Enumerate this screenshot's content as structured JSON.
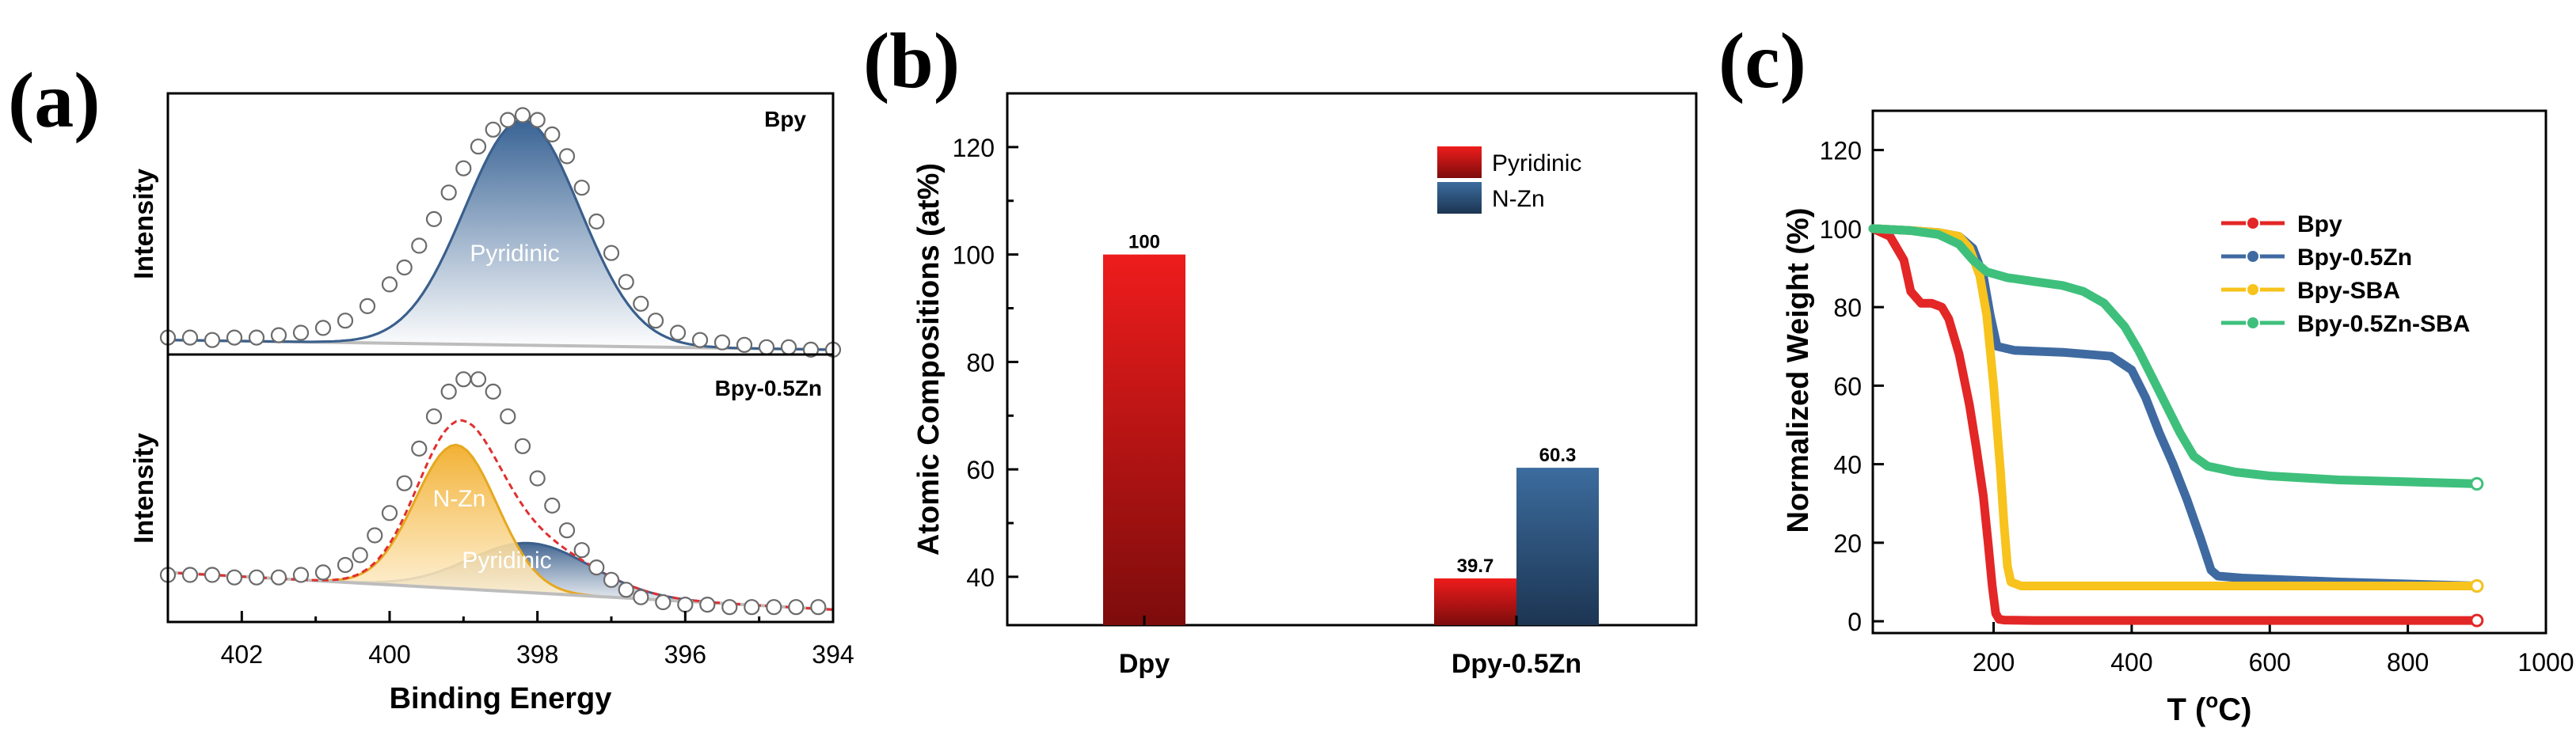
{
  "figure": {
    "panels": [
      {
        "label": "(a)"
      },
      {
        "label": "(b)"
      },
      {
        "label": "(c)"
      }
    ]
  },
  "chart_data": [
    {
      "type": "area",
      "panel": "(a)",
      "xlabel": "Binding Energy",
      "ylabel": "Intensity",
      "xlim": [
        403,
        394
      ],
      "x_reversed": true,
      "xticks": [
        402,
        400,
        398,
        396,
        394
      ],
      "subplots": [
        {
          "name": "Bpy",
          "ylim": [
            0,
            1.08
          ],
          "background": {
            "x": [
              403,
              394
            ],
            "y": [
              0.06,
              0.02
            ]
          },
          "peaks": [
            {
              "name": "Pyridinic",
              "center": 398.2,
              "height": 0.93,
              "sigma": 0.78,
              "color": "#3a5f8c"
            }
          ],
          "data_points": {
            "x": [
              403.0,
              402.7,
              402.4,
              402.1,
              401.8,
              401.5,
              401.2,
              400.9,
              400.6,
              400.3,
              400.0,
              399.8,
              399.6,
              399.4,
              399.2,
              399.0,
              398.8,
              398.6,
              398.4,
              398.2,
              398.0,
              397.8,
              397.6,
              397.4,
              397.2,
              397.0,
              396.8,
              396.6,
              396.4,
              396.1,
              395.8,
              395.5,
              395.2,
              394.9,
              394.6,
              394.3,
              394.0
            ],
            "y": [
              0.07,
              0.07,
              0.06,
              0.07,
              0.07,
              0.08,
              0.09,
              0.11,
              0.14,
              0.2,
              0.29,
              0.36,
              0.45,
              0.56,
              0.67,
              0.77,
              0.86,
              0.93,
              0.97,
              0.99,
              0.97,
              0.91,
              0.82,
              0.69,
              0.55,
              0.42,
              0.3,
              0.21,
              0.14,
              0.09,
              0.06,
              0.05,
              0.04,
              0.03,
              0.03,
              0.02,
              0.02
            ]
          }
        },
        {
          "name": "Bpy-0.5Zn",
          "ylim": [
            0,
            1.08
          ],
          "background": {
            "x": [
              403,
              394
            ],
            "y": [
              0.2,
              0.05
            ]
          },
          "peaks": [
            {
              "name": "N-Zn",
              "center": 399.1,
              "height": 0.58,
              "sigma": 0.55,
              "color": "#f2b134"
            },
            {
              "name": "Pyridinic",
              "center": 398.1,
              "height": 0.2,
              "sigma": 0.82,
              "color": "#3a5f8c"
            }
          ],
          "data_points": {
            "x": [
              403.0,
              402.7,
              402.4,
              402.1,
              401.8,
              401.5,
              401.2,
              400.9,
              400.6,
              400.4,
              400.2,
              400.0,
              399.8,
              399.6,
              399.4,
              399.2,
              399.0,
              398.8,
              398.6,
              398.4,
              398.2,
              398.0,
              397.8,
              397.6,
              397.4,
              397.2,
              397.0,
              396.8,
              396.6,
              396.3,
              396.0,
              395.7,
              395.4,
              395.1,
              394.8,
              394.5,
              394.2
            ],
            "y": [
              0.19,
              0.19,
              0.19,
              0.18,
              0.18,
              0.18,
              0.19,
              0.2,
              0.23,
              0.27,
              0.35,
              0.44,
              0.56,
              0.7,
              0.83,
              0.93,
              0.98,
              0.98,
              0.93,
              0.83,
              0.71,
              0.58,
              0.47,
              0.37,
              0.29,
              0.22,
              0.17,
              0.13,
              0.1,
              0.08,
              0.07,
              0.07,
              0.06,
              0.06,
              0.06,
              0.06,
              0.06
            ]
          }
        }
      ]
    },
    {
      "type": "bar",
      "panel": "(b)",
      "ylabel": "Atomic Compositions (at%)",
      "xlabel": "",
      "ylim": [
        31,
        130
      ],
      "yticks": [
        40,
        60,
        80,
        100,
        120
      ],
      "categories": [
        "Dpy",
        "Dpy-0.5Zn"
      ],
      "series": [
        {
          "name": "Pyridinic",
          "values": [
            100,
            39.7
          ],
          "color": "#d9141c"
        },
        {
          "name": "N-Zn",
          "values": [
            null,
            60.3
          ],
          "color": "#2f5a86"
        }
      ],
      "data_labels": [
        [
          "100",
          "39.7"
        ],
        [
          "",
          "60.3"
        ]
      ],
      "legend": "top-right"
    },
    {
      "type": "line",
      "panel": "(c)",
      "xlabel": "T (",
      "xlabel_superscript": "o",
      "xlabel_tail": "C)",
      "ylabel": "Normalized Weight (%)",
      "xlim": [
        25,
        1000
      ],
      "ylim": [
        -3,
        130
      ],
      "xticks": [
        200,
        400,
        600,
        800,
        1000
      ],
      "yticks": [
        0,
        20,
        40,
        60,
        80,
        100,
        120
      ],
      "legend": "top-right",
      "series": [
        {
          "name": "Bpy",
          "color": "#e32626",
          "x": [
            25,
            50,
            70,
            80,
            95,
            110,
            125,
            135,
            150,
            165,
            175,
            185,
            192,
            198,
            203,
            208,
            215,
            260,
            400,
            600,
            800,
            900
          ],
          "y": [
            100,
            98,
            92,
            84,
            81,
            81,
            80,
            77,
            68,
            55,
            44,
            32,
            20,
            9,
            2,
            0.5,
            0.3,
            0.2,
            0.2,
            0.2,
            0.2,
            0.2
          ]
        },
        {
          "name": "Bpy-0.5Zn",
          "color": "#3f6aa1",
          "x": [
            25,
            80,
            120,
            150,
            170,
            185,
            195,
            205,
            230,
            300,
            370,
            400,
            420,
            440,
            460,
            480,
            500,
            515,
            525,
            560,
            700,
            900
          ],
          "y": [
            100,
            99.5,
            99,
            98,
            95,
            88,
            78,
            70,
            69,
            68.5,
            67.5,
            64,
            57,
            48,
            40,
            31,
            21,
            13,
            11.5,
            11,
            10,
            9
          ]
        },
        {
          "name": "Bpy-SBA",
          "color": "#f7c31c",
          "x": [
            25,
            80,
            120,
            150,
            165,
            180,
            190,
            200,
            210,
            215,
            220,
            225,
            240,
            300,
            500,
            700,
            900
          ],
          "y": [
            100,
            99.5,
            99,
            98,
            95,
            88,
            78,
            60,
            38,
            25,
            14,
            10,
            9,
            9,
            9,
            9,
            9
          ]
        },
        {
          "name": "Bpy-0.5Zn-SBA",
          "color": "#3ec07c",
          "x": [
            25,
            80,
            120,
            150,
            170,
            190,
            220,
            260,
            300,
            330,
            360,
            390,
            410,
            430,
            450,
            470,
            490,
            510,
            550,
            600,
            700,
            800,
            900
          ],
          "y": [
            100,
            99.5,
            98.5,
            96,
            92,
            89,
            87.5,
            86.5,
            85.5,
            84,
            81,
            75,
            69,
            62,
            55,
            48,
            42,
            39.5,
            38,
            37,
            36,
            35.5,
            35
          ]
        }
      ]
    }
  ]
}
